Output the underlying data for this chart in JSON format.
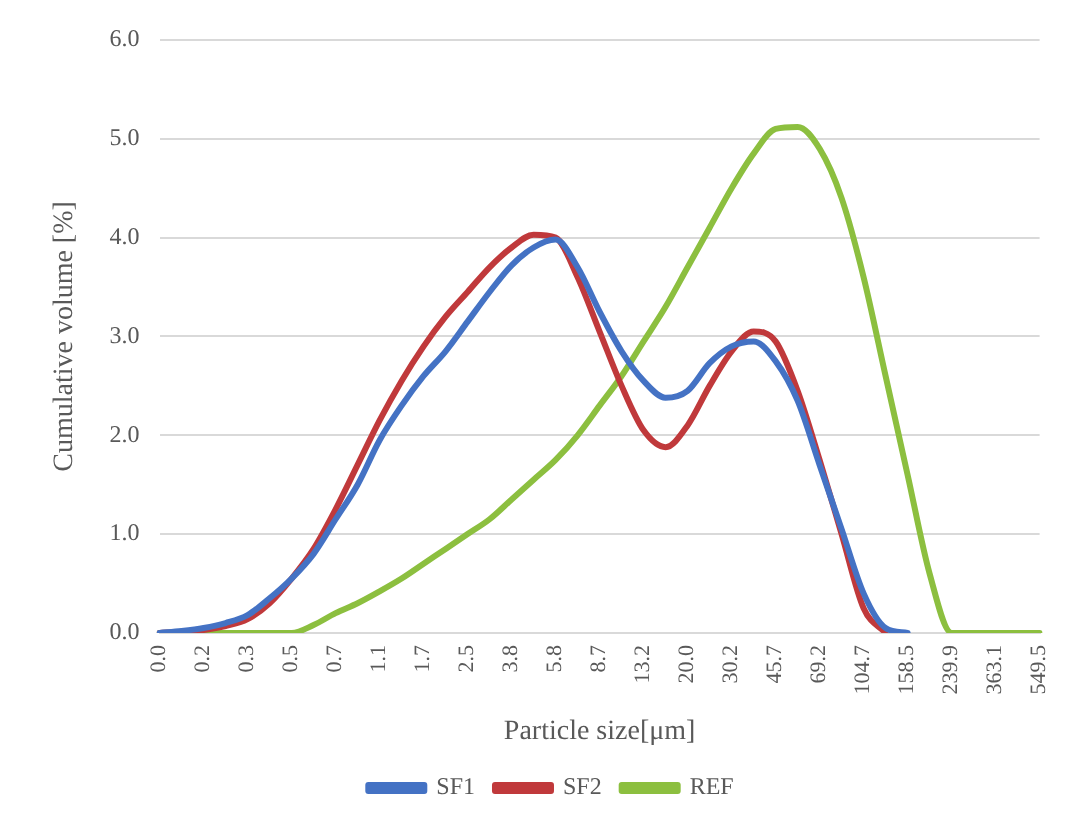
{
  "chart_data": {
    "type": "line",
    "xlabel": "Particle size[μm]",
    "ylabel": "Cumulative volume [%]",
    "categories": [
      "0.0",
      null,
      "0.2",
      null,
      "0.3",
      null,
      "0.5",
      null,
      "0.7",
      null,
      "1.1",
      null,
      "1.7",
      null,
      "2.5",
      null,
      "3.8",
      null,
      "5.8",
      null,
      "8.7",
      null,
      "13.2",
      null,
      "20.0",
      null,
      "30.2",
      null,
      "45.7",
      null,
      "69.2",
      null,
      "104.7",
      null,
      "158.5",
      null,
      "239.9",
      null,
      "363.1",
      null,
      "549.5"
    ],
    "series": [
      {
        "name": "SF1",
        "color": "#4472c4",
        "values": [
          0,
          0.02,
          0.05,
          0.1,
          0.18,
          0.35,
          0.55,
          0.8,
          1.15,
          1.5,
          1.95,
          2.3,
          2.6,
          2.85,
          3.15,
          3.45,
          3.72,
          3.9,
          3.98,
          3.7,
          3.25,
          2.85,
          2.55,
          2.38,
          2.45,
          2.73,
          2.9,
          2.95,
          2.75,
          2.35,
          1.7,
          1.05,
          0.4,
          0.05,
          0,
          null,
          null,
          null,
          null,
          null,
          null
        ]
      },
      {
        "name": "SF2",
        "color": "#c0393b",
        "values": [
          0,
          0.01,
          0.03,
          0.07,
          0.14,
          0.3,
          0.55,
          0.85,
          1.25,
          1.7,
          2.15,
          2.55,
          2.9,
          3.2,
          3.45,
          3.7,
          3.9,
          4.03,
          4.0,
          3.6,
          3.05,
          2.5,
          2.05,
          1.88,
          2.1,
          2.5,
          2.85,
          3.05,
          2.95,
          2.45,
          1.75,
          1.0,
          0.25,
          0,
          null,
          null,
          null,
          null,
          null,
          null,
          null
        ]
      },
      {
        "name": "REF",
        "color": "#8cbf3f",
        "values": [
          0,
          0,
          0,
          0,
          0,
          0,
          0,
          0.08,
          0.2,
          0.3,
          0.42,
          0.55,
          0.7,
          0.85,
          1.0,
          1.15,
          1.35,
          1.55,
          1.75,
          2.0,
          2.3,
          2.6,
          2.95,
          3.3,
          3.7,
          4.1,
          4.5,
          4.85,
          5.1,
          5.12,
          4.9,
          4.4,
          3.6,
          2.6,
          1.6,
          0.6,
          0,
          0,
          0,
          0,
          0
        ]
      }
    ],
    "ylim": [
      0,
      6
    ],
    "yticks": [
      {
        "value": 0,
        "label": "0.0"
      },
      {
        "value": 1,
        "label": "1.0"
      },
      {
        "value": 2,
        "label": "2.0"
      },
      {
        "value": 3,
        "label": "3.0"
      },
      {
        "value": 4,
        "label": "4.0"
      },
      {
        "value": 5,
        "label": "5.0"
      },
      {
        "value": 6,
        "label": "6.0"
      }
    ],
    "grid": "y",
    "legend": "bottom",
    "marker": "none",
    "line_style": "solid"
  }
}
